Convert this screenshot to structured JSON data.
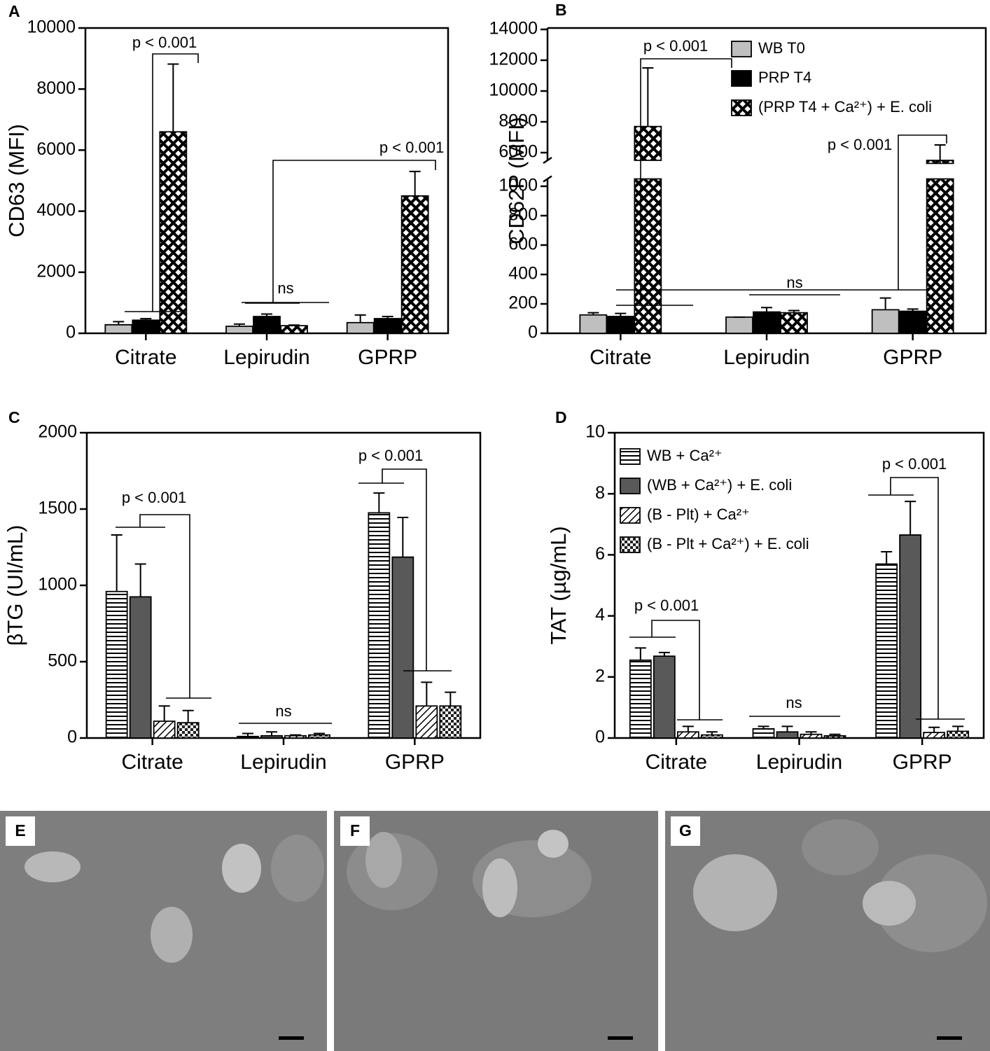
{
  "chart_data": [
    {
      "type": "bar",
      "panel_label": "A",
      "ylabel": "CD63 (MFI)",
      "categories": [
        "Citrate",
        "Lepirudin",
        "GPRP"
      ],
      "series": [
        {
          "color": "#bfbfbf",
          "values": [
            280,
            230,
            350
          ],
          "errors": [
            100,
            70,
            250
          ]
        },
        {
          "color": "#000000",
          "values": [
            430,
            550,
            480
          ],
          "errors": [
            50,
            80,
            70
          ]
        },
        {
          "color": "#000000",
          "pattern": "crosshatch",
          "values": [
            6600,
            250,
            4500
          ],
          "errors": [
            2220,
            20,
            800
          ]
        }
      ],
      "ylim": [
        0,
        10000
      ],
      "yticks": [
        0,
        2000,
        4000,
        6000,
        8000,
        10000
      ],
      "annotations": [
        "p < 0.001",
        "p < 0.001",
        "ns"
      ]
    },
    {
      "type": "bar",
      "panel_label": "B",
      "ylabel": "CD62P (MFI)",
      "categories": [
        "Citrate",
        "Lepirudin",
        "GPRP"
      ],
      "series": [
        {
          "name": "WB T0",
          "color": "#bfbfbf",
          "values": [
            125,
            110,
            160
          ],
          "errors": [
            15,
            0,
            80
          ]
        },
        {
          "name": "PRP T4",
          "color": "#000000",
          "values": [
            115,
            145,
            150
          ],
          "errors": [
            20,
            30,
            15
          ]
        },
        {
          "name": "(PRP T4 + Ca²⁺) + E. coli",
          "color": "#000000",
          "pattern": "crosshatch",
          "values": [
            7700,
            140,
            5300
          ],
          "errors": [
            3800,
            15,
            1200
          ]
        }
      ],
      "ylim": [
        0,
        14000
      ],
      "ylim_segments": [
        [
          0,
          1050
        ],
        [
          5500,
          14000
        ]
      ],
      "yticks": [
        0,
        200,
        400,
        600,
        800,
        1000,
        6000,
        8000,
        10000,
        12000,
        14000
      ],
      "legend": "upper right",
      "annotations": [
        "p < 0.001",
        "p < 0.001",
        "ns"
      ]
    },
    {
      "type": "bar",
      "panel_label": "C",
      "ylabel": "βTG (UI/mL)",
      "categories": [
        "Citrate",
        "Lepirudin",
        "GPRP"
      ],
      "series": [
        {
          "color": "#ffffff",
          "pattern": "hstripe",
          "values": [
            960,
            10,
            1475
          ],
          "errors": [
            370,
            20,
            130
          ]
        },
        {
          "color": "#595959",
          "values": [
            925,
            15,
            1185
          ],
          "errors": [
            215,
            25,
            260
          ]
        },
        {
          "color": "#ffffff",
          "pattern": "diag",
          "values": [
            110,
            15,
            210
          ],
          "errors": [
            100,
            5,
            155
          ]
        },
        {
          "color": "#ffffff",
          "pattern": "check",
          "values": [
            100,
            20,
            210
          ],
          "errors": [
            80,
            10,
            90
          ]
        }
      ],
      "ylim": [
        0,
        2000
      ],
      "yticks": [
        0,
        500,
        1000,
        1500,
        2000
      ],
      "annotations": [
        "p < 0.001",
        "p < 0.001",
        "ns"
      ]
    },
    {
      "type": "bar",
      "panel_label": "D",
      "ylabel": "TAT (µg/mL)",
      "categories": [
        "Citrate",
        "Lepirudin",
        "GPRP"
      ],
      "series": [
        {
          "name": "WB + Ca²⁺",
          "color": "#ffffff",
          "pattern": "hstripe",
          "values": [
            2.55,
            0.3,
            5.7
          ],
          "errors": [
            0.4,
            0.08,
            0.4
          ]
        },
        {
          "name": "(WB + Ca²⁺) + E. coli",
          "color": "#595959",
          "values": [
            2.68,
            0.2,
            6.65
          ],
          "errors": [
            0.12,
            0.18,
            1.1
          ]
        },
        {
          "name": "(B - Plt) + Ca²⁺",
          "color": "#ffffff",
          "pattern": "diag",
          "values": [
            0.2,
            0.12,
            0.18
          ],
          "errors": [
            0.18,
            0.08,
            0.17
          ]
        },
        {
          "name": "(B - Plt + Ca²⁺) + E. coli",
          "color": "#ffffff",
          "pattern": "check",
          "values": [
            0.1,
            0.07,
            0.22
          ],
          "errors": [
            0.1,
            0.05,
            0.16
          ]
        }
      ],
      "ylim": [
        0,
        10
      ],
      "yticks": [
        0,
        2,
        4,
        6,
        8,
        10
      ],
      "legend": "upper left",
      "annotations": [
        "p < 0.001",
        "p < 0.001",
        "ns"
      ]
    }
  ],
  "image_panels": [
    "E",
    "F",
    "G"
  ]
}
